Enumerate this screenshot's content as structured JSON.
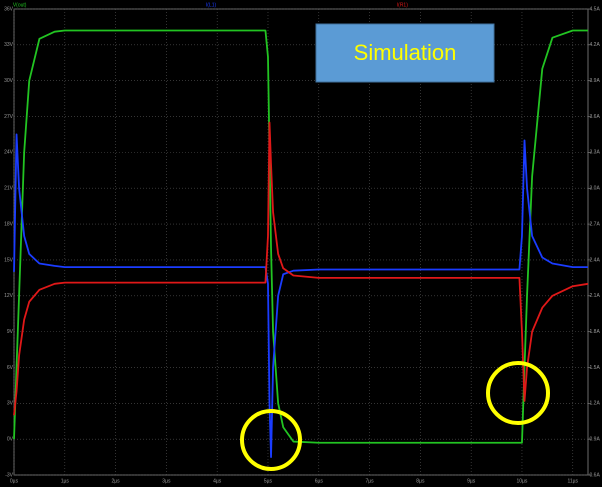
{
  "chart_data": {
    "type": "line",
    "annotation": "Simulation",
    "x": [
      0,
      0.05,
      0.1,
      0.2,
      0.3,
      0.5,
      0.8,
      1,
      2,
      3,
      4,
      4.95,
      5,
      5.03,
      5.06,
      5.1,
      5.2,
      5.3,
      5.5,
      6,
      7,
      8,
      9,
      9.95,
      10,
      10.05,
      10.1,
      10.2,
      10.4,
      10.6,
      11,
      11.3
    ],
    "series": [
      {
        "name": "V(out)",
        "color": "#22c422",
        "axis": "y",
        "values": [
          0,
          6,
          12,
          24,
          30,
          33.5,
          34.1,
          34.2,
          34.2,
          34.2,
          34.2,
          34.2,
          32,
          24,
          16,
          9,
          3,
          1,
          -0.2,
          -0.3,
          -0.3,
          -0.3,
          -0.3,
          -0.3,
          -0.3,
          6,
          12,
          22,
          31,
          33.6,
          34.2,
          34.2
        ]
      },
      {
        "name": "I(L1)",
        "color": "#1a3cff",
        "axis": "y2",
        "values": [
          2.3,
          3.45,
          3.0,
          2.6,
          2.45,
          2.37,
          2.35,
          2.34,
          2.34,
          2.34,
          2.34,
          2.34,
          2.2,
          1.2,
          0.75,
          1.5,
          2.1,
          2.28,
          2.31,
          2.32,
          2.32,
          2.32,
          2.32,
          2.32,
          2.6,
          3.4,
          3.0,
          2.6,
          2.42,
          2.37,
          2.34,
          2.34
        ]
      },
      {
        "name": "I(R1)",
        "color": "#e01818",
        "axis": "y2",
        "values": [
          1.1,
          1.3,
          1.6,
          1.9,
          2.05,
          2.15,
          2.2,
          2.21,
          2.21,
          2.21,
          2.21,
          2.21,
          2.6,
          3.55,
          3.2,
          2.8,
          2.45,
          2.33,
          2.27,
          2.25,
          2.25,
          2.25,
          2.25,
          2.25,
          1.8,
          1.22,
          1.5,
          1.8,
          2.0,
          2.1,
          2.18,
          2.2
        ]
      }
    ],
    "xlim": [
      0,
      11.3
    ],
    "xticks": [
      {
        "value": 0,
        "label": "0µs"
      },
      {
        "value": 1,
        "label": "1µs"
      },
      {
        "value": 2,
        "label": "2µs"
      },
      {
        "value": 3,
        "label": "3µs"
      },
      {
        "value": 4,
        "label": "4µs"
      },
      {
        "value": 5,
        "label": "5µs"
      },
      {
        "value": 6,
        "label": "6µs"
      },
      {
        "value": 7,
        "label": "7µs"
      },
      {
        "value": 8,
        "label": "8µs"
      },
      {
        "value": 9,
        "label": "9µs"
      },
      {
        "value": 10,
        "label": "10µs"
      },
      {
        "value": 11,
        "label": "11µs"
      }
    ],
    "ylim": [
      -3,
      36
    ],
    "yticks": [
      {
        "value": -3,
        "label": "-3V"
      },
      {
        "value": 0,
        "label": "0V"
      },
      {
        "value": 3,
        "label": "3V"
      },
      {
        "value": 6,
        "label": "6V"
      },
      {
        "value": 9,
        "label": "9V"
      },
      {
        "value": 12,
        "label": "12V"
      },
      {
        "value": 15,
        "label": "15V"
      },
      {
        "value": 18,
        "label": "18V"
      },
      {
        "value": 21,
        "label": "21V"
      },
      {
        "value": 24,
        "label": "24V"
      },
      {
        "value": 27,
        "label": "27V"
      },
      {
        "value": 30,
        "label": "30V"
      },
      {
        "value": 33,
        "label": "33V"
      },
      {
        "value": 36,
        "label": "36V"
      }
    ],
    "y2lim": [
      0.6,
      4.5
    ],
    "y2ticks": [
      {
        "value": 0.6,
        "label": "0.6A"
      },
      {
        "value": 0.9,
        "label": "0.9A"
      },
      {
        "value": 1.2,
        "label": "1.2A"
      },
      {
        "value": 1.5,
        "label": "1.5A"
      },
      {
        "value": 1.8,
        "label": "1.8A"
      },
      {
        "value": 2.1,
        "label": "2.1A"
      },
      {
        "value": 2.4,
        "label": "2.4A"
      },
      {
        "value": 2.7,
        "label": "2.7A"
      },
      {
        "value": 3.0,
        "label": "3.0A"
      },
      {
        "value": 3.3,
        "label": "3.3A"
      },
      {
        "value": 3.6,
        "label": "3.6A"
      },
      {
        "value": 3.9,
        "label": "3.9A"
      },
      {
        "value": 4.2,
        "label": "4.2A"
      },
      {
        "value": 4.5,
        "label": "4.5A"
      }
    ],
    "grid": true
  }
}
